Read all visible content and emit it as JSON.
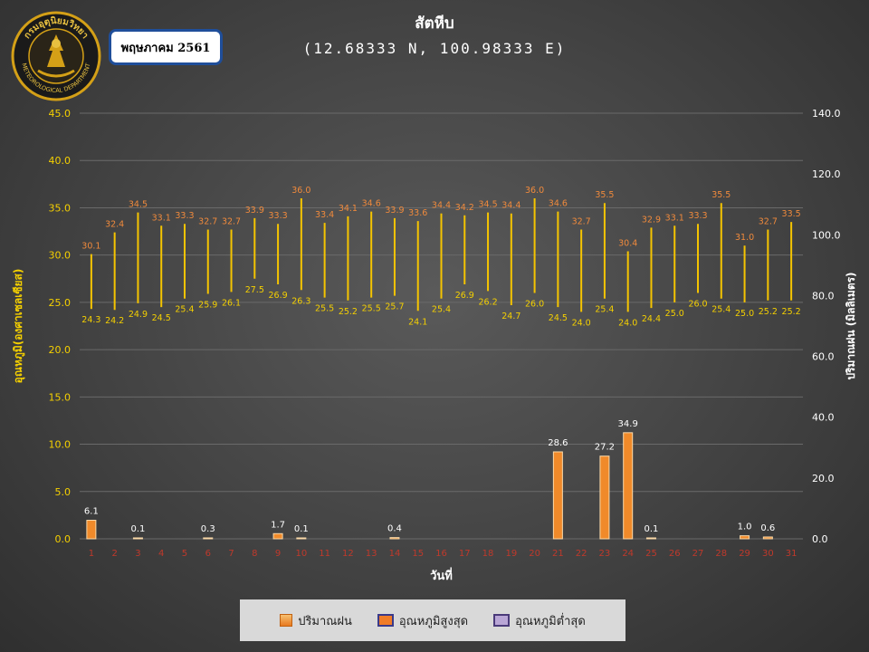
{
  "header": {
    "title": "สัตหีบ",
    "coords": "(12.68333 N, 100.98333 E)",
    "month_label": "พฤษภาคม 2561",
    "logo_text_top": "กรมอุตุนิยมวิทยา",
    "logo_text_bottom": "METEOROLOGICAL DEPARTMENT"
  },
  "legend": {
    "rain": "ปริมาณฝน",
    "max": "อุณหภูมิสูงสุด",
    "min": "อุณหภูมิต่ำสุด"
  },
  "colors": {
    "temp_line": "#f5c400",
    "max_label": "#f08a3c",
    "min_label": "#f5d000",
    "rain_bar": "#f08a2a",
    "axis_text": "#f5d000",
    "right_axis_text": "#ffffff",
    "day_text": "#c0392b"
  },
  "chart_data": {
    "type": "bar",
    "xlabel": "วันที่",
    "ylabel_left": "อุณหภูมิ(องศาเซลเซียส)",
    "ylabel_right": "ปริมาณฝน (มิลลิเมตร)",
    "ylim_left": [
      0,
      45
    ],
    "yticks_left": [
      "0.0",
      "5.0",
      "10.0",
      "15.0",
      "20.0",
      "25.0",
      "30.0",
      "35.0",
      "40.0",
      "45.0"
    ],
    "ylim_right": [
      0,
      140
    ],
    "yticks_right": [
      "0.0",
      "20.0",
      "40.0",
      "60.0",
      "80.0",
      "100.0",
      "120.0",
      "140.0"
    ],
    "grid": true,
    "categories": [
      "1",
      "2",
      "3",
      "4",
      "5",
      "6",
      "7",
      "8",
      "9",
      "10",
      "11",
      "12",
      "13",
      "14",
      "15",
      "16",
      "17",
      "18",
      "19",
      "20",
      "21",
      "22",
      "23",
      "24",
      "25",
      "26",
      "27",
      "28",
      "29",
      "30",
      "31"
    ],
    "max_temp": [
      30.1,
      32.4,
      34.5,
      33.1,
      33.3,
      32.7,
      32.7,
      33.9,
      33.3,
      36.0,
      33.4,
      34.1,
      34.6,
      33.9,
      33.6,
      34.4,
      34.2,
      34.5,
      34.4,
      36.0,
      34.6,
      32.7,
      35.5,
      30.4,
      32.9,
      33.1,
      33.3,
      35.5,
      31.0,
      32.7,
      33.5
    ],
    "min_temp": [
      24.3,
      24.2,
      24.9,
      24.5,
      25.4,
      25.9,
      26.1,
      27.5,
      26.9,
      26.3,
      25.5,
      25.2,
      25.5,
      25.7,
      24.1,
      25.4,
      26.9,
      26.2,
      24.7,
      26.0,
      24.5,
      24.0,
      25.4,
      24.0,
      24.4,
      25.0,
      26.0,
      25.4,
      25.0,
      25.2,
      25.2
    ],
    "rain_days": [
      "1",
      "3",
      "6",
      "9",
      "10",
      "14",
      "21",
      "23",
      "24",
      "25",
      "29",
      "30"
    ],
    "rain_values": [
      6.1,
      0.1,
      0.3,
      1.7,
      0.1,
      0.4,
      28.6,
      27.2,
      34.9,
      0.1,
      1.0,
      0.6
    ]
  }
}
